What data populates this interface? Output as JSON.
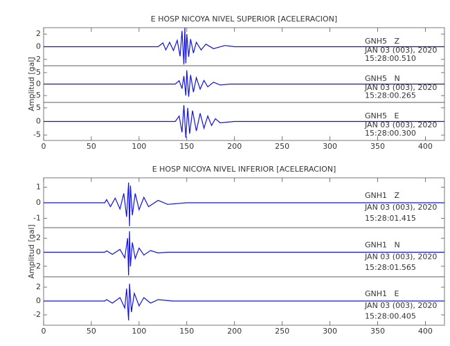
{
  "chart_data": [
    {
      "type": "line",
      "title": "E HOSP NICOYA NIVEL SUPERIOR [ACELERACION]",
      "y_label": "Amplitud [gal]",
      "xlim": [
        0,
        420
      ],
      "xticks": [
        0,
        50,
        100,
        150,
        200,
        250,
        300,
        350,
        400
      ],
      "traces": [
        {
          "station": "GNH5   Z",
          "date": "JAN 03 (003), 2020",
          "time": "15:28:00.510",
          "color": "#1010e0",
          "ylim": [
            -3,
            3
          ],
          "yticks": [
            2,
            0,
            -2
          ],
          "x": [
            0,
            120,
            125,
            128,
            132,
            136,
            140,
            143,
            145,
            147,
            148,
            149,
            150,
            152,
            154,
            157,
            160,
            165,
            170,
            178,
            190,
            200,
            420
          ],
          "values": [
            0,
            0,
            0.6,
            -0.5,
            0.7,
            -0.6,
            1.0,
            -1.5,
            2.5,
            -2.8,
            3.0,
            -2.6,
            2.0,
            -1.6,
            1.2,
            -1.0,
            0.7,
            -0.5,
            0.4,
            -0.3,
            0.2,
            0,
            0
          ]
        },
        {
          "station": "GNH5   N",
          "date": "JAN 03 (003), 2020",
          "time": "15:28:00.265",
          "color": "#1010e0",
          "ylim": [
            -8,
            8
          ],
          "yticks": [
            5,
            0,
            -5
          ],
          "x": [
            0,
            138,
            142,
            145,
            147,
            149,
            150,
            152,
            154,
            157,
            160,
            164,
            168,
            172,
            178,
            185,
            195,
            420
          ],
          "values": [
            0,
            0,
            1.5,
            -2,
            3.5,
            -5,
            6,
            -5.5,
            4,
            -3.5,
            2.8,
            -2.2,
            1.6,
            -1.2,
            0.8,
            -0.4,
            0,
            0
          ]
        },
        {
          "station": "GNH5   E",
          "date": "JAN 03 (003), 2020",
          "time": "15:28:00.300",
          "color": "#1010e0",
          "ylim": [
            -7,
            7
          ],
          "yticks": [
            5,
            0,
            -5
          ],
          "x": [
            0,
            138,
            142,
            145,
            147,
            149,
            151,
            153,
            156,
            160,
            164,
            168,
            172,
            176,
            180,
            185,
            200,
            420
          ],
          "values": [
            0,
            0,
            2,
            -4,
            6,
            -6,
            5,
            -4.5,
            4,
            -3.5,
            3,
            -2.5,
            2,
            -1.5,
            1,
            -0.5,
            0,
            0
          ]
        }
      ]
    },
    {
      "type": "line",
      "title": "E HOSP NICOYA NIVEL INFERIOR [ACELERACION]",
      "y_label": "Amplitud [gal]",
      "xlim": [
        0,
        420
      ],
      "xticks": [
        0,
        50,
        100,
        150,
        200,
        250,
        300,
        350,
        400
      ],
      "traces": [
        {
          "station": "GNH1   Z",
          "date": "JAN 03 (003), 2020",
          "time": "15:28:01.415",
          "color": "#1010e0",
          "ylim": [
            -1.6,
            1.6
          ],
          "yticks": [
            1,
            0,
            -1
          ],
          "x": [
            0,
            64,
            66,
            70,
            75,
            80,
            84,
            87,
            89,
            90,
            91,
            93,
            96,
            100,
            105,
            110,
            120,
            130,
            150,
            420
          ],
          "values": [
            0,
            0,
            0.2,
            -0.25,
            0.3,
            -0.4,
            0.6,
            -0.9,
            1.3,
            -1.5,
            1.1,
            -0.8,
            0.6,
            -0.45,
            0.35,
            -0.25,
            0.15,
            -0.1,
            0,
            0
          ]
        },
        {
          "station": "GNH1   N",
          "date": "JAN 03 (003), 2020",
          "time": "15:28:01.565",
          "color": "#1010e0",
          "ylim": [
            -3.5,
            3.5
          ],
          "yticks": [
            2,
            0,
            -2
          ],
          "x": [
            0,
            64,
            66,
            72,
            80,
            85,
            88,
            89,
            90,
            91,
            93,
            96,
            100,
            105,
            112,
            120,
            130,
            420
          ],
          "values": [
            0,
            0,
            0.2,
            -0.3,
            0.4,
            -0.8,
            2,
            -3.3,
            3,
            -2,
            1.4,
            -0.9,
            0.6,
            -0.4,
            0.25,
            -0.1,
            0,
            0
          ]
        },
        {
          "station": "GNH1   E",
          "date": "JAN 03 (003), 2020",
          "time": "15:28:00.405",
          "color": "#1010e0",
          "ylim": [
            -3.5,
            3.5
          ],
          "yticks": [
            2,
            0,
            -2
          ],
          "x": [
            0,
            64,
            66,
            72,
            80,
            85,
            87,
            89,
            90,
            92,
            95,
            100,
            105,
            112,
            120,
            135,
            420
          ],
          "values": [
            0,
            0,
            0.2,
            -0.3,
            0.5,
            -1,
            1.8,
            -2.8,
            2.5,
            -1.6,
            1.1,
            -0.7,
            0.5,
            -0.3,
            0.2,
            0,
            0
          ]
        }
      ]
    }
  ]
}
